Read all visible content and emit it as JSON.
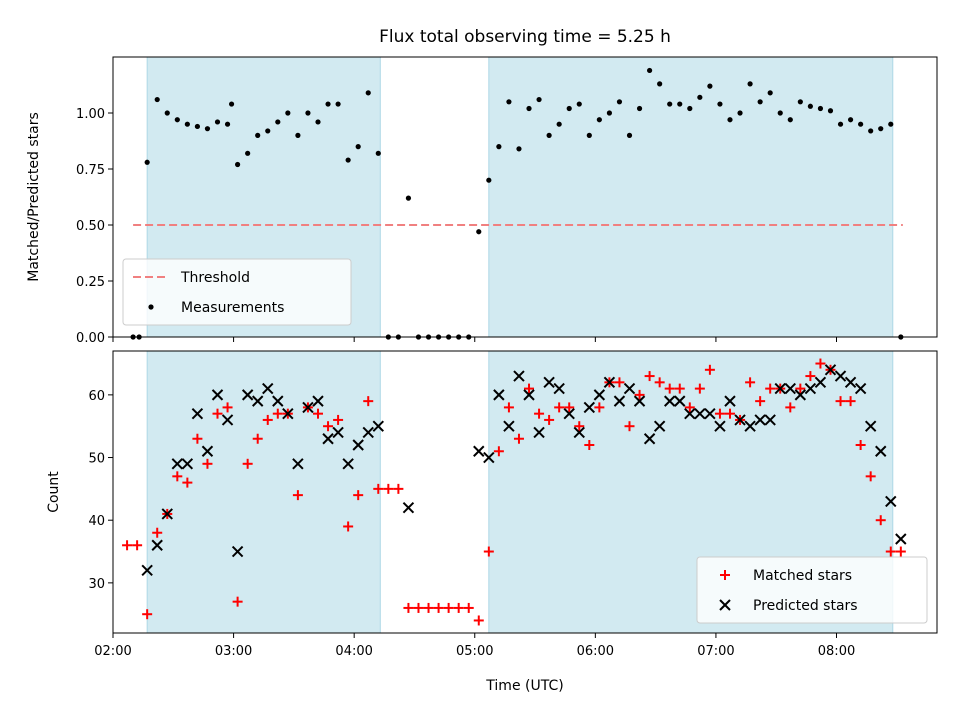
{
  "chart_data": [
    {
      "type": "scatter",
      "title": "Flux total observing time = 5.25 h",
      "ylabel": "Matched/Predicted stars",
      "xlabel": "",
      "xlim": [
        "02:00",
        "08:50"
      ],
      "ylim": [
        0,
        1.25
      ],
      "yticks": [
        "0.00",
        "0.25",
        "0.50",
        "0.75",
        "1.00"
      ],
      "shaded_intervals": [
        [
          "02:17",
          "04:13"
        ],
        [
          "05:07",
          "08:28"
        ]
      ],
      "shade_color": "#add8e6",
      "threshold": {
        "name": "Threshold",
        "y": 0.5,
        "x_range": [
          "02:10",
          "08:33"
        ],
        "color": "#f08080",
        "style": "dashed"
      },
      "legend": {
        "placement": "lower-left",
        "entries": [
          "Threshold",
          "Measurements"
        ]
      },
      "series": [
        {
          "name": "Measurements",
          "marker": "dot",
          "color": "#000000",
          "points": [
            [
              "02:10",
              0.0
            ],
            [
              "02:13",
              0.0
            ],
            [
              "02:17",
              0.78
            ],
            [
              "02:22",
              1.06
            ],
            [
              "02:27",
              1.0
            ],
            [
              "02:32",
              0.97
            ],
            [
              "02:37",
              0.95
            ],
            [
              "02:42",
              0.94
            ],
            [
              "02:47",
              0.93
            ],
            [
              "02:52",
              0.96
            ],
            [
              "02:57",
              0.95
            ],
            [
              "02:59",
              1.04
            ],
            [
              "03:02",
              0.77
            ],
            [
              "03:07",
              0.82
            ],
            [
              "03:12",
              0.9
            ],
            [
              "03:17",
              0.92
            ],
            [
              "03:22",
              0.96
            ],
            [
              "03:27",
              1.0
            ],
            [
              "03:32",
              0.9
            ],
            [
              "03:37",
              1.0
            ],
            [
              "03:42",
              0.96
            ],
            [
              "03:47",
              1.04
            ],
            [
              "03:52",
              1.04
            ],
            [
              "03:57",
              0.79
            ],
            [
              "04:02",
              0.85
            ],
            [
              "04:07",
              1.09
            ],
            [
              "04:12",
              0.82
            ],
            [
              "04:17",
              0.0
            ],
            [
              "04:22",
              0.0
            ],
            [
              "04:27",
              0.62
            ],
            [
              "04:32",
              0.0
            ],
            [
              "04:37",
              0.0
            ],
            [
              "04:42",
              0.0
            ],
            [
              "04:47",
              0.0
            ],
            [
              "04:52",
              0.0
            ],
            [
              "04:57",
              0.0
            ],
            [
              "05:02",
              0.47
            ],
            [
              "05:07",
              0.7
            ],
            [
              "05:12",
              0.85
            ],
            [
              "05:17",
              1.05
            ],
            [
              "05:22",
              0.84
            ],
            [
              "05:27",
              1.02
            ],
            [
              "05:32",
              1.06
            ],
            [
              "05:37",
              0.9
            ],
            [
              "05:42",
              0.95
            ],
            [
              "05:47",
              1.02
            ],
            [
              "05:52",
              1.04
            ],
            [
              "05:57",
              0.9
            ],
            [
              "06:02",
              0.97
            ],
            [
              "06:07",
              1.0
            ],
            [
              "06:12",
              1.05
            ],
            [
              "06:17",
              0.9
            ],
            [
              "06:22",
              1.02
            ],
            [
              "06:27",
              1.19
            ],
            [
              "06:32",
              1.13
            ],
            [
              "06:37",
              1.04
            ],
            [
              "06:42",
              1.04
            ],
            [
              "06:47",
              1.02
            ],
            [
              "06:52",
              1.07
            ],
            [
              "06:57",
              1.12
            ],
            [
              "07:02",
              1.04
            ],
            [
              "07:07",
              0.97
            ],
            [
              "07:12",
              1.0
            ],
            [
              "07:17",
              1.13
            ],
            [
              "07:22",
              1.05
            ],
            [
              "07:27",
              1.09
            ],
            [
              "07:32",
              1.0
            ],
            [
              "07:37",
              0.97
            ],
            [
              "07:42",
              1.05
            ],
            [
              "07:47",
              1.03
            ],
            [
              "07:52",
              1.02
            ],
            [
              "07:57",
              1.01
            ],
            [
              "08:02",
              0.95
            ],
            [
              "08:07",
              0.97
            ],
            [
              "08:12",
              0.95
            ],
            [
              "08:17",
              0.92
            ],
            [
              "08:22",
              0.93
            ],
            [
              "08:27",
              0.95
            ],
            [
              "08:32",
              0.0
            ]
          ]
        }
      ]
    },
    {
      "type": "scatter",
      "title": "",
      "xlabel": "Time (UTC)",
      "ylabel": "Count",
      "xlim": [
        "02:00",
        "08:50"
      ],
      "xticks": [
        "02:00",
        "03:00",
        "04:00",
        "05:00",
        "06:00",
        "07:00",
        "08:00"
      ],
      "ylim": [
        22,
        67
      ],
      "yticks": [
        30,
        40,
        50,
        60
      ],
      "shaded_intervals": [
        [
          "02:17",
          "04:13"
        ],
        [
          "05:07",
          "08:28"
        ]
      ],
      "legend": {
        "placement": "lower-right",
        "entries": [
          "Matched stars",
          "Predicted stars"
        ]
      },
      "series": [
        {
          "name": "Matched stars",
          "marker": "plus",
          "color": "#ff0000",
          "points": [
            [
              "02:07",
              36
            ],
            [
              "02:12",
              36
            ],
            [
              "02:17",
              25
            ],
            [
              "02:22",
              38
            ],
            [
              "02:27",
              41
            ],
            [
              "02:32",
              47
            ],
            [
              "02:37",
              46
            ],
            [
              "02:42",
              53
            ],
            [
              "02:47",
              49
            ],
            [
              "02:52",
              57
            ],
            [
              "02:57",
              58
            ],
            [
              "03:02",
              27
            ],
            [
              "03:07",
              49
            ],
            [
              "03:12",
              53
            ],
            [
              "03:17",
              56
            ],
            [
              "03:22",
              57
            ],
            [
              "03:27",
              57
            ],
            [
              "03:32",
              44
            ],
            [
              "03:37",
              58
            ],
            [
              "03:42",
              57
            ],
            [
              "03:47",
              55
            ],
            [
              "03:52",
              56
            ],
            [
              "03:57",
              39
            ],
            [
              "04:02",
              44
            ],
            [
              "04:07",
              59
            ],
            [
              "04:12",
              45
            ],
            [
              "04:17",
              45
            ],
            [
              "04:22",
              45
            ],
            [
              "04:27",
              26
            ],
            [
              "04:32",
              26
            ],
            [
              "04:37",
              26
            ],
            [
              "04:42",
              26
            ],
            [
              "04:47",
              26
            ],
            [
              "04:52",
              26
            ],
            [
              "04:57",
              26
            ],
            [
              "05:02",
              24
            ],
            [
              "05:07",
              35
            ],
            [
              "05:12",
              51
            ],
            [
              "05:17",
              58
            ],
            [
              "05:22",
              53
            ],
            [
              "05:27",
              61
            ],
            [
              "05:32",
              57
            ],
            [
              "05:37",
              56
            ],
            [
              "05:42",
              58
            ],
            [
              "05:47",
              58
            ],
            [
              "05:52",
              55
            ],
            [
              "05:57",
              52
            ],
            [
              "06:02",
              58
            ],
            [
              "06:07",
              62
            ],
            [
              "06:12",
              62
            ],
            [
              "06:17",
              55
            ],
            [
              "06:22",
              60
            ],
            [
              "06:27",
              63
            ],
            [
              "06:32",
              62
            ],
            [
              "06:37",
              61
            ],
            [
              "06:42",
              61
            ],
            [
              "06:47",
              58
            ],
            [
              "06:52",
              61
            ],
            [
              "06:57",
              64
            ],
            [
              "07:02",
              57
            ],
            [
              "07:07",
              57
            ],
            [
              "07:12",
              56
            ],
            [
              "07:17",
              62
            ],
            [
              "07:22",
              59
            ],
            [
              "07:27",
              61
            ],
            [
              "07:32",
              61
            ],
            [
              "07:37",
              58
            ],
            [
              "07:42",
              61
            ],
            [
              "07:47",
              63
            ],
            [
              "07:52",
              65
            ],
            [
              "07:57",
              64
            ],
            [
              "08:02",
              59
            ],
            [
              "08:07",
              59
            ],
            [
              "08:12",
              52
            ],
            [
              "08:17",
              47
            ],
            [
              "08:22",
              40
            ],
            [
              "08:27",
              35
            ],
            [
              "08:32",
              35
            ]
          ]
        },
        {
          "name": "Predicted stars",
          "marker": "x",
          "color": "#000000",
          "points": [
            [
              "02:17",
              32
            ],
            [
              "02:22",
              36
            ],
            [
              "02:27",
              41
            ],
            [
              "02:32",
              49
            ],
            [
              "02:37",
              49
            ],
            [
              "02:42",
              57
            ],
            [
              "02:47",
              51
            ],
            [
              "02:52",
              60
            ],
            [
              "02:57",
              56
            ],
            [
              "03:02",
              35
            ],
            [
              "03:07",
              60
            ],
            [
              "03:12",
              59
            ],
            [
              "03:17",
              61
            ],
            [
              "03:22",
              59
            ],
            [
              "03:27",
              57
            ],
            [
              "03:32",
              49
            ],
            [
              "03:37",
              58
            ],
            [
              "03:42",
              59
            ],
            [
              "03:47",
              53
            ],
            [
              "03:52",
              54
            ],
            [
              "03:57",
              49
            ],
            [
              "04:02",
              52
            ],
            [
              "04:07",
              54
            ],
            [
              "04:12",
              55
            ],
            [
              "04:27",
              42
            ],
            [
              "05:02",
              51
            ],
            [
              "05:07",
              50
            ],
            [
              "05:12",
              60
            ],
            [
              "05:17",
              55
            ],
            [
              "05:22",
              63
            ],
            [
              "05:27",
              60
            ],
            [
              "05:32",
              54
            ],
            [
              "05:37",
              62
            ],
            [
              "05:42",
              61
            ],
            [
              "05:47",
              57
            ],
            [
              "05:52",
              54
            ],
            [
              "05:57",
              58
            ],
            [
              "06:02",
              60
            ],
            [
              "06:07",
              62
            ],
            [
              "06:12",
              59
            ],
            [
              "06:17",
              61
            ],
            [
              "06:22",
              59
            ],
            [
              "06:27",
              53
            ],
            [
              "06:32",
              55
            ],
            [
              "06:37",
              59
            ],
            [
              "06:42",
              59
            ],
            [
              "06:47",
              57
            ],
            [
              "06:52",
              57
            ],
            [
              "06:57",
              57
            ],
            [
              "07:02",
              55
            ],
            [
              "07:07",
              59
            ],
            [
              "07:12",
              56
            ],
            [
              "07:17",
              55
            ],
            [
              "07:22",
              56
            ],
            [
              "07:27",
              56
            ],
            [
              "07:32",
              61
            ],
            [
              "07:37",
              61
            ],
            [
              "07:42",
              60
            ],
            [
              "07:47",
              61
            ],
            [
              "07:52",
              62
            ],
            [
              "07:57",
              64
            ],
            [
              "08:02",
              63
            ],
            [
              "08:07",
              62
            ],
            [
              "08:12",
              61
            ],
            [
              "08:17",
              55
            ],
            [
              "08:22",
              51
            ],
            [
              "08:27",
              43
            ],
            [
              "08:32",
              37
            ]
          ]
        }
      ]
    }
  ]
}
